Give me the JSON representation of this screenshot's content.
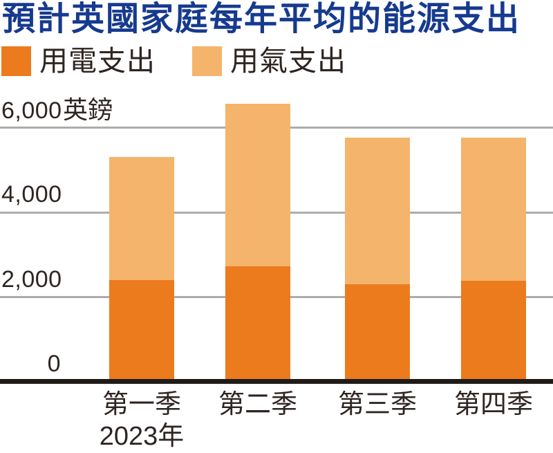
{
  "title": "預計英國家庭每年平均的能源支出",
  "colors": {
    "title": "#163a8e",
    "text": "#2e2522",
    "electricity": "#ec7b1e",
    "gas": "#f4b46b",
    "gridline": "#adacaa",
    "axis": "#1f1b18",
    "background": "#ffffff"
  },
  "legend": {
    "items": [
      {
        "label": "用電支出"
      },
      {
        "label": "用氣支出"
      }
    ]
  },
  "chart_data": {
    "type": "bar",
    "stacked": true,
    "title": "預計英國家庭每年平均的能源支出",
    "categories": [
      "第一季",
      "第二季",
      "第三季",
      "第四季"
    ],
    "x_sub_labels": [
      "2023年",
      "",
      "",
      ""
    ],
    "series": [
      {
        "name": "用電支出",
        "color": "#ec7b1e",
        "values": [
          2400,
          2730,
          2300,
          2390
        ]
      },
      {
        "name": "用氣支出",
        "color": "#f4b46b",
        "values": [
          2900,
          3830,
          3470,
          3370
        ]
      }
    ],
    "totals": [
      5300,
      6560,
      5770,
      5760
    ],
    "unit": "英鎊",
    "xlabel": "",
    "ylabel": "",
    "ylim": [
      0,
      6700
    ],
    "y_ticks": [
      {
        "value": 6000,
        "label": "6,000",
        "suffix": "英鎊"
      },
      {
        "value": 4000,
        "label": "4,000",
        "suffix": ""
      },
      {
        "value": 2000,
        "label": "2,000",
        "suffix": ""
      },
      {
        "value": 0,
        "label": "0",
        "suffix": ""
      }
    ],
    "grid": true,
    "legend_position": "top-left"
  }
}
